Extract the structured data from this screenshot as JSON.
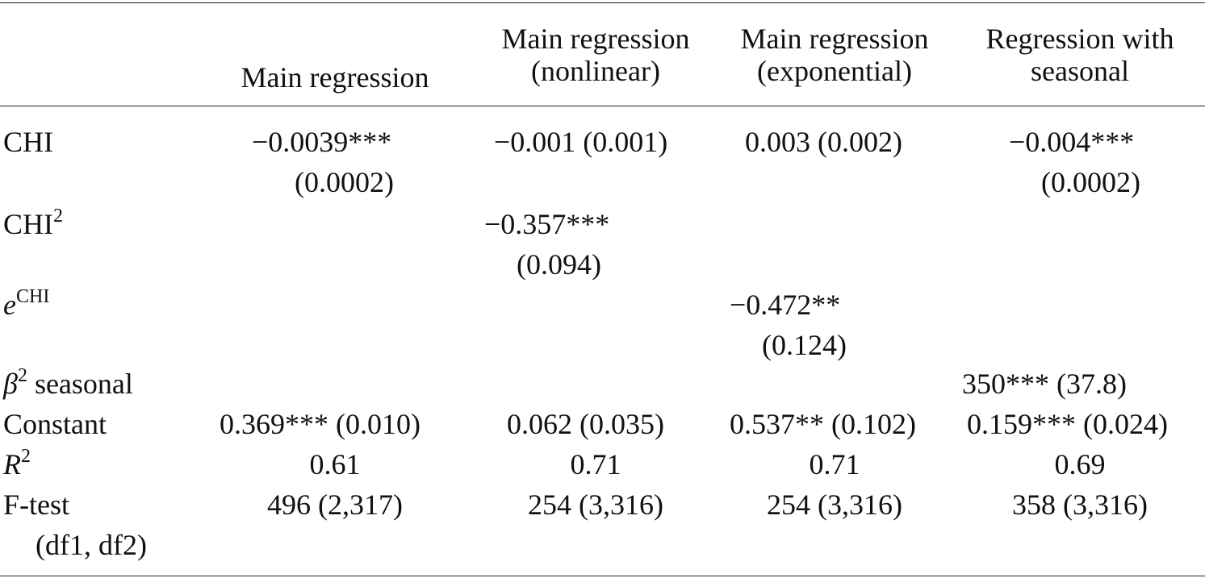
{
  "header": {
    "col1": [
      "Main regression"
    ],
    "col2": [
      "Main regression",
      "(nonlinear)"
    ],
    "col3": [
      "Main regression",
      "(exponential)"
    ],
    "col4": [
      "Regression with",
      "seasonal"
    ]
  },
  "rows": {
    "chi": {
      "label": "CHI",
      "c1_a": "−0.0039***",
      "c1_b": "(0.0002)",
      "c2": "−0.001 (0.001)",
      "c3": "0.003 (0.002)",
      "c4_a": "−0.004***",
      "c4_b": "(0.0002)"
    },
    "chi2": {
      "label": "CHI",
      "label_sup": "2",
      "c2_a": "−0.357***",
      "c2_b": "(0.094)"
    },
    "echi": {
      "label": "e",
      "label_sup": "CHI",
      "c3_a": "−0.472**",
      "c3_b": "(0.124)"
    },
    "beta2": {
      "label_pre": "β",
      "label_sup": "2",
      "label_post": " seasonal",
      "c4": "350*** (37.8)"
    },
    "constant": {
      "label": "Constant",
      "c1": "0.369*** (0.010)",
      "c2": "0.062 (0.035)",
      "c3": "0.537** (0.102)",
      "c4": "0.159*** (0.024)"
    },
    "r2": {
      "label": "R",
      "label_sup": "2",
      "c1": "0.61",
      "c2": "0.71",
      "c3": "0.71",
      "c4": "0.69"
    },
    "ftest": {
      "label_a": "F-test",
      "label_b": "(df1, df2)",
      "c1": "496 (2,317)",
      "c2": "254 (3,316)",
      "c3": "254 (3,316)",
      "c4": "358 (3,316)"
    }
  }
}
